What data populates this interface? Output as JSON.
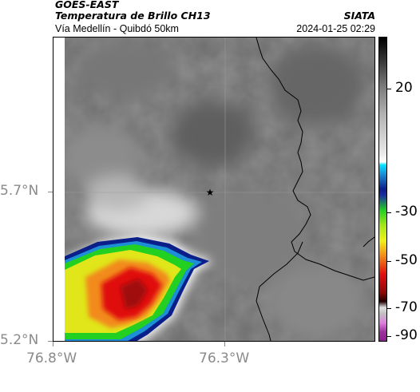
{
  "header": {
    "satellite": "GOES-EAST",
    "product": "Temperatura de Brillo CH13",
    "route": "Vía Medellín - Quibdó 50km",
    "agency": "SIATA",
    "datetime": "2024-01-25 02:29"
  },
  "map": {
    "lat_labels": [
      "5.7°N",
      "5.2°N"
    ],
    "lon_labels": [
      "76.8°W",
      "76.3°W"
    ],
    "marker": "star-icon",
    "colors": {
      "background_gray": "#6e6e6e",
      "cold_cloud_red": "#e01010",
      "border_line": "#000000"
    }
  },
  "colorbar": {
    "labels": [
      "20",
      "-30",
      "-50",
      "-70",
      "-90"
    ]
  }
}
